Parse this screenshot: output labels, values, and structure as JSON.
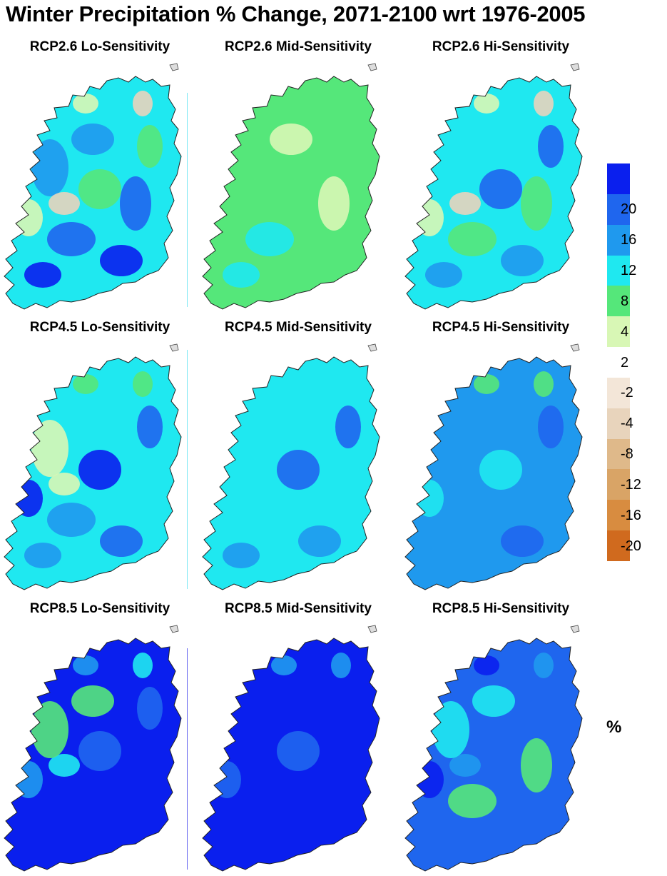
{
  "title": "Winter Precipitation % Change, 2071-2100 wrt 1976-2005",
  "panels": [
    {
      "label": "RCP2.6 Lo-Sensitivity",
      "base": "#1fe8f0",
      "patches": [
        "#1f99ee",
        "#1f66ee",
        "#0a1fee",
        "#55e77a",
        "#d8f7b5",
        "#e8d4bc"
      ]
    },
    {
      "label": "RCP2.6 Mid-Sensitivity",
      "base": "#55e77a",
      "patches": [
        "#d8f7b5",
        "#1fe8f0"
      ]
    },
    {
      "label": "RCP2.6 Hi-Sensitivity",
      "base": "#1fe8f0",
      "patches": [
        "#55e77a",
        "#1f99ee",
        "#1f66ee",
        "#d8f7b5",
        "#e8d4bc"
      ]
    },
    {
      "label": "RCP4.5 Lo-Sensitivity",
      "base": "#1fe8f0",
      "patches": [
        "#1f99ee",
        "#1f66ee",
        "#0a1fee",
        "#55e77a",
        "#d8f7b5"
      ]
    },
    {
      "label": "RCP4.5 Mid-Sensitivity",
      "base": "#1fe8f0",
      "patches": [
        "#1f99ee",
        "#1f66ee"
      ]
    },
    {
      "label": "RCP4.5 Hi-Sensitivity",
      "base": "#1f99ee",
      "patches": [
        "#1f66ee",
        "#1fe8f0",
        "#55e77a"
      ]
    },
    {
      "label": "RCP8.5 Lo-Sensitivity",
      "base": "#0a1fee",
      "patches": [
        "#1f66ee",
        "#1f99ee",
        "#1fe8f0",
        "#55e77a"
      ]
    },
    {
      "label": "RCP8.5 Mid-Sensitivity",
      "base": "#0a1fee",
      "patches": [
        "#1f66ee",
        "#1f99ee"
      ]
    },
    {
      "label": "RCP8.5 Hi-Sensitivity",
      "base": "#1f66ee",
      "patches": [
        "#0a1fee",
        "#1f99ee",
        "#1fe8f0",
        "#55e77a"
      ]
    }
  ],
  "colorbar": {
    "unit": "%",
    "bins": [
      {
        "color": "#0a1fee",
        "label": ""
      },
      {
        "color": "#1f66ee",
        "label": "20"
      },
      {
        "color": "#1f99ee",
        "label": "16"
      },
      {
        "color": "#1fe8f0",
        "label": "12"
      },
      {
        "color": "#55e77a",
        "label": "8"
      },
      {
        "color": "#d8f7b5",
        "label": "4"
      },
      {
        "color": "#ffffff",
        "label": "2"
      },
      {
        "color": "#f3e6d8",
        "label": "-2"
      },
      {
        "color": "#e8d4bc",
        "label": "-4"
      },
      {
        "color": "#dfb98a",
        "label": "-8"
      },
      {
        "color": "#d9a466",
        "label": "-12"
      },
      {
        "color": "#d88c40",
        "label": "-16"
      },
      {
        "color": "#d06a1e",
        "label": "-20"
      }
    ]
  }
}
